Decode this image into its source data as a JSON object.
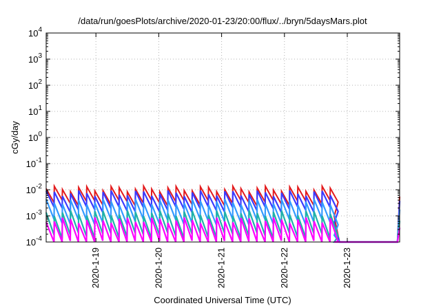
{
  "chart_data": {
    "type": "line",
    "title": "/data/run/goesPlots/archive/2020-01-23/20:00/flux/../bryn/5daysMars.plot",
    "xlabel": "Coordinated Universal Time (UTC)",
    "ylabel": "cGy/day",
    "yscale": "log",
    "ylim": [
      0.0001,
      10000
    ],
    "xlim": [
      "2020-01-18 05:00",
      "2020-01-23 20:00"
    ],
    "grid": true,
    "x_ticks": [
      "2020-1-19",
      "2020-1-20",
      "2020-1-21",
      "2020-1-22",
      "2020-1-23"
    ],
    "y_ticks": [
      {
        "base": "10",
        "exp": "-4"
      },
      {
        "base": "10",
        "exp": "-3"
      },
      {
        "base": "10",
        "exp": "-2"
      },
      {
        "base": "10",
        "exp": "-1"
      },
      {
        "base": "10",
        "exp": "0"
      },
      {
        "base": "10",
        "exp": "1"
      },
      {
        "base": "10",
        "exp": "2"
      },
      {
        "base": "10",
        "exp": "3"
      },
      {
        "base": "10",
        "exp": "4"
      }
    ],
    "series": [
      {
        "color": "#e31a1c",
        "values_desc": "sawtooth peaks ~0.008-0.013 cGy/day until 2020-01-22 18:00, then falls below 1e-4; rises again near 2020-01-23 20:00"
      },
      {
        "color": "#3a3aff",
        "values_desc": "sawtooth peaks ~0.005-0.009 cGy/day"
      },
      {
        "color": "#3399ff",
        "values_desc": "sawtooth ~0.001-0.004 cGy/day"
      },
      {
        "color": "#20b2aa",
        "values_desc": "sawtooth ~0.0003-0.0015 cGy/day"
      },
      {
        "color": "#ff00ff",
        "values_desc": "sawtooth ~0.0001-0.0008 cGy/day"
      }
    ]
  }
}
